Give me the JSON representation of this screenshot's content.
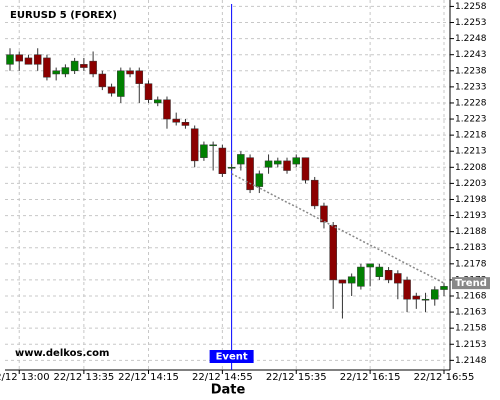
{
  "chart_data": {
    "type": "candlestick",
    "title": "EURUSD 5 (FOREX)",
    "x_label": "Date",
    "watermark": "www.delkos.com",
    "categories": [
      null,
      "22/12 13:00",
      null,
      null,
      null,
      null,
      null,
      null,
      "22/12 13:35",
      null,
      null,
      null,
      null,
      null,
      null,
      "22/12 14:15",
      null,
      null,
      null,
      null,
      null,
      null,
      null,
      "22/12 14:55",
      null,
      null,
      null,
      null,
      null,
      null,
      null,
      "22/12 15:35",
      null,
      null,
      null,
      null,
      null,
      null,
      null,
      "22/12 16:15",
      null,
      null,
      null,
      null,
      null,
      null,
      null,
      "22/12 16:55"
    ],
    "open": [
      1.224,
      1.2243,
      1.2242,
      1.2243,
      1.2242,
      1.2237,
      1.2237,
      1.2238,
      1.224,
      1.2241,
      1.2237,
      1.2233,
      1.223,
      1.2238,
      1.2238,
      1.2234,
      1.2228,
      1.2229,
      1.2223,
      1.2222,
      1.222,
      1.2211,
      1.2215,
      1.2214,
      1.2208,
      1.2209,
      1.2211,
      1.2202,
      1.2208,
      1.2209,
      1.221,
      1.2209,
      1.2211,
      1.2204,
      1.2196,
      1.219,
      1.2173,
      1.2172,
      1.2171,
      1.2177,
      1.2174,
      1.2176,
      1.2175,
      1.2173,
      1.2168,
      1.2167,
      1.2167,
      1.217
    ],
    "high": [
      1.2245,
      1.2244,
      1.2243,
      1.2245,
      1.2243,
      1.2239,
      1.224,
      1.2242,
      1.2242,
      1.2244,
      1.2238,
      1.2234,
      1.2239,
      1.2239,
      1.2239,
      1.2235,
      1.223,
      1.223,
      1.2225,
      1.2223,
      1.2221,
      1.2216,
      1.2216,
      1.2215,
      1.2209,
      1.2213,
      1.2212,
      1.2207,
      1.2212,
      1.2211,
      1.2211,
      1.2212,
      1.2211,
      1.2205,
      1.2197,
      1.2191,
      1.2173,
      1.2175,
      1.2178,
      1.2178,
      1.2178,
      1.2177,
      1.2176,
      1.2174,
      1.2169,
      1.2169,
      1.2171,
      1.2172
    ],
    "low": [
      1.2238,
      1.2238,
      1.224,
      1.2238,
      1.2235,
      1.2235,
      1.2236,
      1.2237,
      1.2238,
      1.2236,
      1.2232,
      1.223,
      1.2228,
      1.2236,
      1.2228,
      1.2228,
      1.2227,
      1.222,
      1.2221,
      1.222,
      1.2208,
      1.221,
      1.2207,
      1.2205,
      1.2207,
      1.2207,
      1.22,
      1.22,
      1.2206,
      1.2208,
      1.2206,
      1.2208,
      1.2203,
      1.2195,
      1.2189,
      1.2164,
      1.2161,
      1.2168,
      1.217,
      1.2171,
      1.2173,
      1.2172,
      1.2167,
      1.2163,
      1.2164,
      1.2163,
      1.2165,
      1.2168
    ],
    "close": [
      1.2243,
      1.2241,
      1.224,
      1.224,
      1.2236,
      1.2238,
      1.2239,
      1.2241,
      1.2239,
      1.2237,
      1.2233,
      1.2231,
      1.2238,
      1.2237,
      1.2234,
      1.2229,
      1.2229,
      1.2223,
      1.2222,
      1.2221,
      1.221,
      1.2215,
      1.2215,
      1.2206,
      1.2208,
      1.2212,
      1.2201,
      1.2206,
      1.221,
      1.221,
      1.2207,
      1.2211,
      1.2204,
      1.2196,
      1.2191,
      1.2173,
      1.2172,
      1.2174,
      1.2177,
      1.2178,
      1.2177,
      1.2173,
      1.2172,
      1.2167,
      1.2167,
      1.2167,
      1.217,
      1.2171
    ],
    "up_color": "#008000",
    "down_color": "#8b0000",
    "trend": {
      "label": "Trend",
      "color": "#888888",
      "values": [
        null,
        null,
        null,
        null,
        null,
        null,
        null,
        null,
        null,
        null,
        null,
        null,
        null,
        null,
        null,
        null,
        null,
        null,
        null,
        null,
        null,
        null,
        null,
        null,
        1.2206,
        1.22045,
        1.2203,
        1.22016,
        1.22001,
        1.21986,
        1.21971,
        1.21957,
        1.21942,
        1.21927,
        1.21912,
        1.21897,
        1.21883,
        1.21868,
        1.21853,
        1.21838,
        1.21824,
        1.21809,
        1.21794,
        1.21779,
        1.21764,
        1.2175,
        1.21735,
        1.2172
      ]
    },
    "event": {
      "label": "Event",
      "index": 24,
      "color": "#0000ff"
    },
    "ylim": [
      1.2145,
      1.226
    ],
    "yticks": [
      1.2258,
      1.2253,
      1.2248,
      1.2243,
      1.2238,
      1.2233,
      1.2228,
      1.2223,
      1.2218,
      1.2213,
      1.2208,
      1.2203,
      1.2198,
      1.2193,
      1.2188,
      1.2183,
      1.2178,
      1.2173,
      1.2168,
      1.2163,
      1.2158,
      1.2153,
      1.2148
    ],
    "grid": true
  }
}
